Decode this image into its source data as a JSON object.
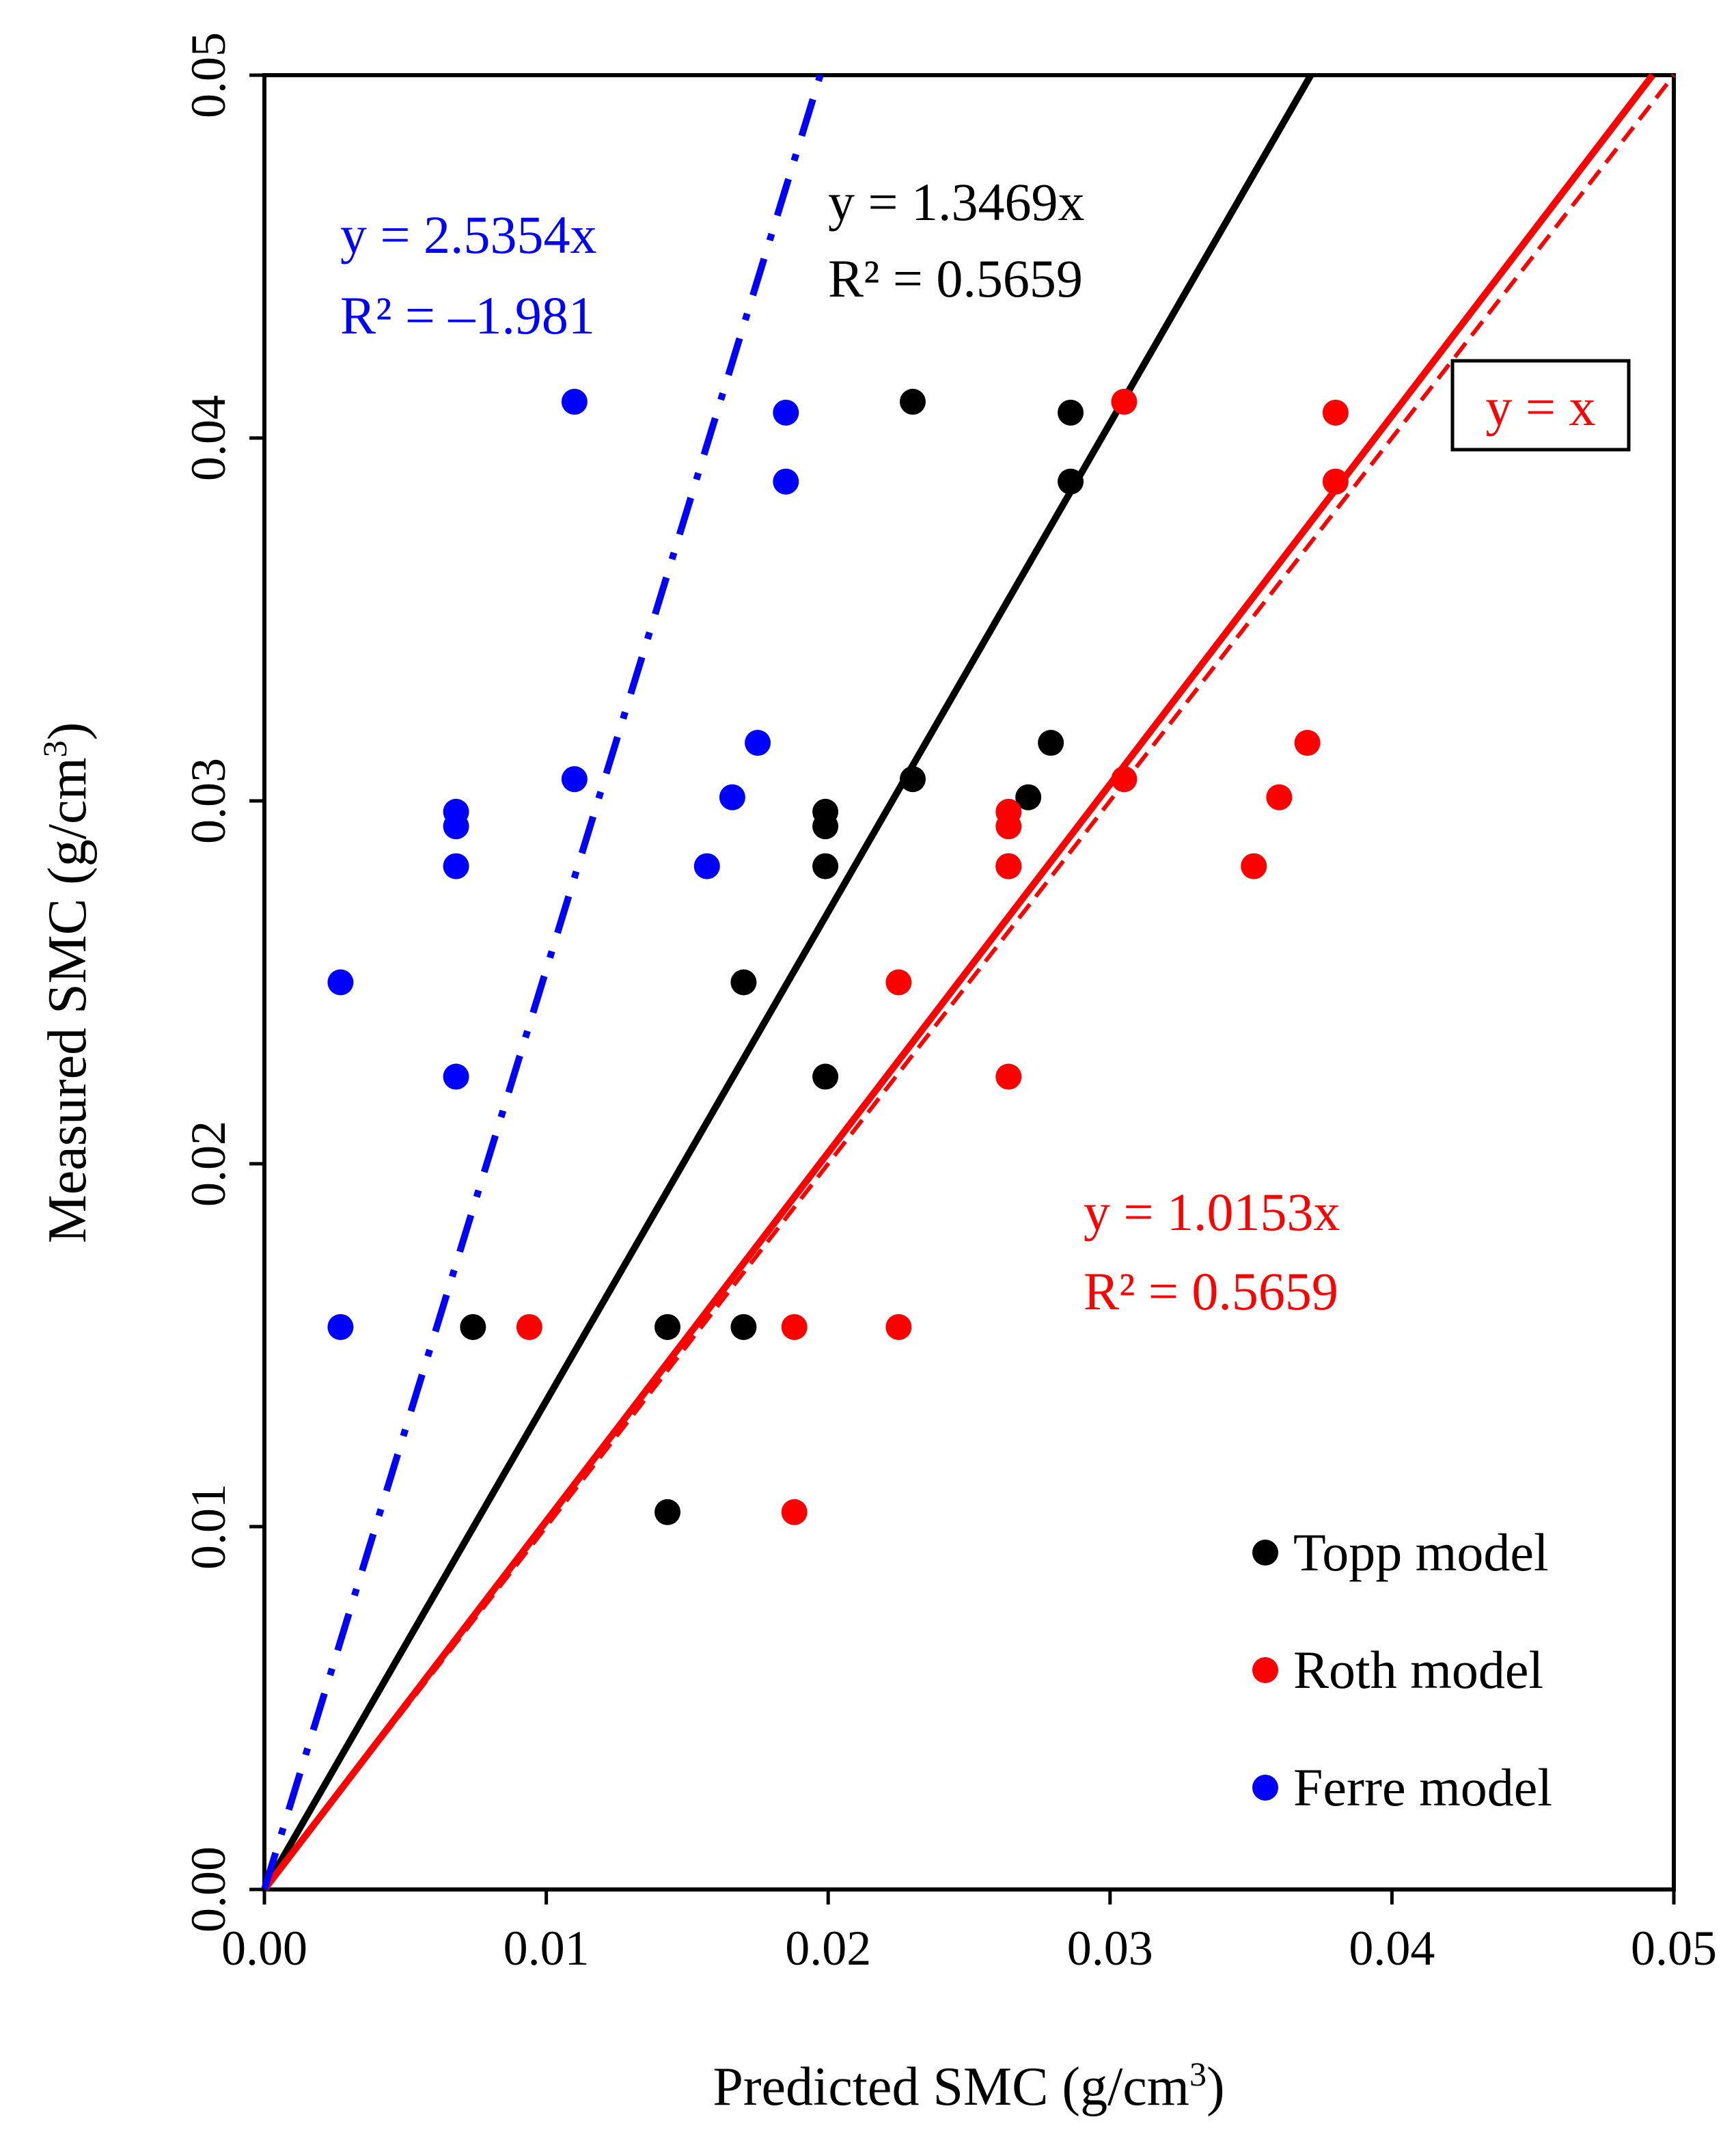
{
  "chart_data": {
    "type": "scatter",
    "xlabel": "Predicted SMC (g/cm",
    "xlabel_sup": "3",
    "xlabel_close": ")",
    "ylabel": "Measured SMC (g/cm",
    "ylabel_sup": "3",
    "ylabel_close": ")",
    "xlim": [
      0,
      0.05
    ],
    "ylim": [
      0,
      0.05
    ],
    "xticks": [
      "0.00",
      "0.01",
      "0.02",
      "0.03",
      "0.04",
      "0.05"
    ],
    "yticks": [
      "0.00",
      "0.01",
      "0.02",
      "0.03",
      "0.04",
      "0.05"
    ],
    "tick_values": [
      0,
      0.01,
      0.02,
      0.03,
      0.04,
      0.05
    ],
    "legend_position": "bottom-right",
    "series": [
      {
        "name": "Topp model",
        "color": "#000000",
        "points": [
          [
            0.0074,
            0.0155
          ],
          [
            0.0143,
            0.0155
          ],
          [
            0.017,
            0.0155
          ],
          [
            0.0143,
            0.0104
          ],
          [
            0.017,
            0.025
          ],
          [
            0.0199,
            0.0224
          ],
          [
            0.0199,
            0.0282
          ],
          [
            0.0199,
            0.0293
          ],
          [
            0.0199,
            0.0297
          ],
          [
            0.023,
            0.0306
          ],
          [
            0.0264,
            0.0282
          ],
          [
            0.0271,
            0.0301
          ],
          [
            0.0279,
            0.0316
          ],
          [
            0.023,
            0.041
          ],
          [
            0.0286,
            0.0407
          ],
          [
            0.0286,
            0.0388
          ]
        ],
        "trend": {
          "slope": 1.3469,
          "equation": "y = 1.3469x",
          "r2": "R² = 0.5659",
          "style": "solid"
        }
      },
      {
        "name": "Roth model",
        "color": "#ff0000",
        "points": [
          [
            0.0094,
            0.0155
          ],
          [
            0.0188,
            0.0155
          ],
          [
            0.0225,
            0.0155
          ],
          [
            0.0188,
            0.0104
          ],
          [
            0.0225,
            0.025
          ],
          [
            0.0264,
            0.0224
          ],
          [
            0.0264,
            0.0282
          ],
          [
            0.0264,
            0.0293
          ],
          [
            0.0264,
            0.0297
          ],
          [
            0.0305,
            0.0306
          ],
          [
            0.0351,
            0.0282
          ],
          [
            0.036,
            0.0301
          ],
          [
            0.037,
            0.0316
          ],
          [
            0.0305,
            0.041
          ],
          [
            0.038,
            0.0407
          ],
          [
            0.038,
            0.0388
          ]
        ],
        "trend": {
          "slope": 1.0153,
          "equation": "y = 1.0153x",
          "r2": "R² = 0.5659",
          "style": "solid"
        }
      },
      {
        "name": "Ferre model",
        "color": "#0000ff",
        "points": [
          [
            0.0027,
            0.0155
          ],
          [
            0.0027,
            0.025
          ],
          [
            0.0068,
            0.0224
          ],
          [
            0.0068,
            0.0282
          ],
          [
            0.0068,
            0.0293
          ],
          [
            0.0068,
            0.0297
          ],
          [
            0.011,
            0.0306
          ],
          [
            0.0157,
            0.0282
          ],
          [
            0.0166,
            0.0301
          ],
          [
            0.0175,
            0.0316
          ],
          [
            0.011,
            0.041
          ],
          [
            0.0185,
            0.0407
          ],
          [
            0.0185,
            0.0388
          ]
        ],
        "trend": {
          "slope": 2.5354,
          "equation": "y = 2.5354x",
          "r2": "R² = –1.981",
          "style": "dashdot"
        }
      }
    ],
    "reference_line": {
      "slope": 1,
      "label": "y = x",
      "color": "#ff0000",
      "style": "dashed"
    },
    "legend": [
      "Topp model",
      "Roth model",
      "Ferre model"
    ]
  }
}
